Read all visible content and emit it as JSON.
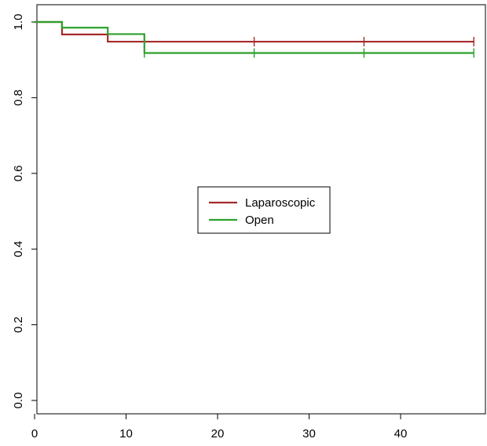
{
  "chart_data": {
    "type": "line",
    "subtype": "kaplan-meier-step",
    "title": "",
    "xlabel": "",
    "ylabel": "",
    "xlim": [
      0,
      49
    ],
    "ylim": [
      0,
      1
    ],
    "x_ticks": [
      {
        "value": 0,
        "label": "0"
      },
      {
        "value": 10,
        "label": "10"
      },
      {
        "value": 20,
        "label": "20"
      },
      {
        "value": 30,
        "label": "30"
      },
      {
        "value": 40,
        "label": "40"
      }
    ],
    "y_ticks": [
      {
        "value": 0.0,
        "label": "0.0"
      },
      {
        "value": 0.2,
        "label": "0.2"
      },
      {
        "value": 0.4,
        "label": "0.4"
      },
      {
        "value": 0.6,
        "label": "0.6"
      },
      {
        "value": 0.8,
        "label": "0.8"
      },
      {
        "value": 1.0,
        "label": "1.0"
      }
    ],
    "grid": false,
    "legend": {
      "position": "center",
      "boxed": true
    },
    "series": [
      {
        "name": "Laparoscopic",
        "color": "#a52a2a",
        "steps": [
          {
            "x": 0,
            "y": 1.0
          },
          {
            "x": 3,
            "y": 0.967
          },
          {
            "x": 8,
            "y": 0.948
          }
        ],
        "end_x": 48,
        "censored": [
          {
            "x": 24,
            "y": 0.948
          },
          {
            "x": 36,
            "y": 0.948
          },
          {
            "x": 48,
            "y": 0.948
          }
        ]
      },
      {
        "name": "Open",
        "color": "#2ca02c",
        "steps": [
          {
            "x": 0,
            "y": 1.0
          },
          {
            "x": 3,
            "y": 0.985
          },
          {
            "x": 8,
            "y": 0.968
          },
          {
            "x": 12,
            "y": 0.918
          }
        ],
        "end_x": 48,
        "censored": [
          {
            "x": 12,
            "y": 0.918
          },
          {
            "x": 24,
            "y": 0.918
          },
          {
            "x": 36,
            "y": 0.918
          },
          {
            "x": 48,
            "y": 0.918
          }
        ]
      }
    ]
  }
}
